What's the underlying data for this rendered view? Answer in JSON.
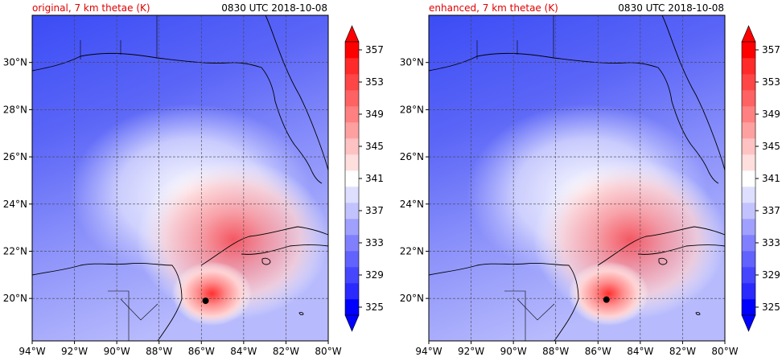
{
  "chart_data": [
    {
      "type": "heatmap",
      "title": "original, 7 km thetae (K)",
      "time_label": "0830 UTC 2018-10-08",
      "x_ticks": [
        "94°W",
        "92°W",
        "90°W",
        "88°W",
        "86°W",
        "84°W",
        "82°W",
        "80°W"
      ],
      "y_ticks": [
        "20°N",
        "22°N",
        "24°N",
        "26°N",
        "28°N",
        "30°N"
      ],
      "xlim": [
        -94,
        -80
      ],
      "ylim": [
        18.2,
        32
      ],
      "grid": true,
      "colorbar_labels": [
        "325",
        "329",
        "333",
        "337",
        "341",
        "345",
        "349",
        "353",
        "357"
      ],
      "marker": {
        "lon": -85.8,
        "lat": 19.9
      }
    },
    {
      "type": "heatmap",
      "title": "enhanced, 7 km thetae (K)",
      "time_label": "0830 UTC 2018-10-08",
      "x_ticks": [
        "94°W",
        "92°W",
        "90°W",
        "88°W",
        "86°W",
        "84°W",
        "82°W",
        "80°W"
      ],
      "y_ticks": [
        "20°N",
        "22°N",
        "24°N",
        "26°N",
        "28°N",
        "30°N"
      ],
      "xlim": [
        -94,
        -80
      ],
      "ylim": [
        18.2,
        32
      ],
      "grid": true,
      "colorbar_labels": [
        "325",
        "329",
        "333",
        "337",
        "341",
        "345",
        "349",
        "353",
        "357"
      ],
      "marker": {
        "lon": -85.6,
        "lat": 19.95
      }
    }
  ],
  "colors": {
    "levels": [
      "#0000ff",
      "#2a2aff",
      "#4646ff",
      "#6262ff",
      "#8080ff",
      "#a0a0ff",
      "#c2c2ff",
      "#dedeff",
      "#ffffff",
      "#ffdede",
      "#ffc2c2",
      "#ffa0a0",
      "#ff8080",
      "#ff6262",
      "#ff4646",
      "#ff2a2a",
      "#ff0000"
    ],
    "title_accent": "#e00000"
  }
}
